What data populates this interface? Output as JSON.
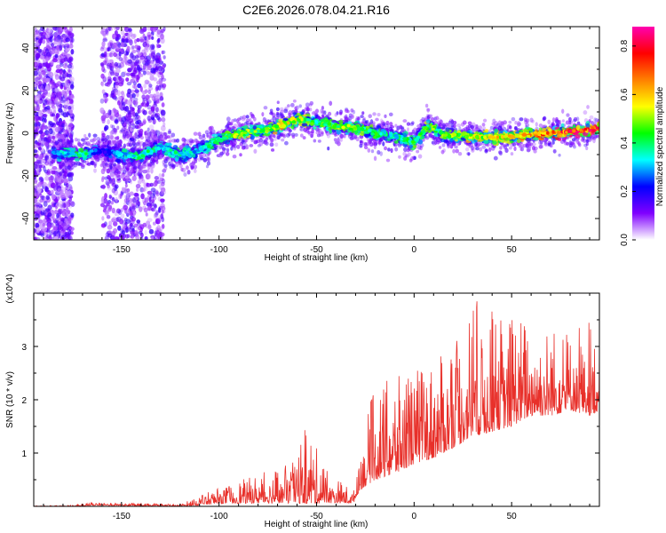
{
  "title": "C2E6.2026.078.04.21.R16",
  "colors": {
    "snr_line": "#e8302a",
    "axis": "#000000",
    "colormap": [
      "#ffffff",
      "#8000ff",
      "#0000ff",
      "#00ffff",
      "#00ff00",
      "#ffff00",
      "#ff8000",
      "#ff0000",
      "#ff00b0"
    ]
  },
  "chart_data": [
    {
      "type": "heatmap",
      "title": "C2E6.2026.078.04.21.R16",
      "xlabel": "Height of straight line (km)",
      "ylabel": "Frequency (Hz)",
      "xlim": [
        -195,
        95
      ],
      "ylim": [
        -50,
        50
      ],
      "xticks": [
        -150,
        -100,
        -50,
        0,
        50
      ],
      "xtick_labels": [
        "-150",
        "-100",
        "-50",
        "0",
        "50"
      ],
      "yticks": [
        -40,
        -20,
        0,
        20,
        40
      ],
      "ytick_labels": [
        "-40",
        "-20",
        "0",
        "20",
        "40"
      ],
      "colorbar": {
        "label": "Normalized spectral amplitude",
        "range": [
          0.0,
          0.88
        ],
        "ticks": [
          0.0,
          0.2,
          0.4,
          0.6,
          0.8
        ],
        "tick_labels": [
          "0.0",
          "0.2",
          "0.4",
          "0.6",
          "0.8"
        ]
      },
      "ridge": {
        "x": [
          -185,
          -170,
          -160,
          -150,
          -140,
          -130,
          -120,
          -110,
          -100,
          -90,
          -80,
          -70,
          -60,
          -50,
          -40,
          -30,
          -20,
          -10,
          0,
          8,
          15,
          25,
          40,
          55,
          70,
          85,
          95
        ],
        "frequency": [
          -9,
          -10,
          -8,
          -10,
          -11,
          -6,
          -10,
          -8,
          -3,
          0,
          1,
          3,
          7,
          5,
          3,
          3,
          0,
          -1,
          -4,
          4,
          -1,
          -1,
          -2,
          -1,
          0,
          1,
          2
        ],
        "amplitude": [
          0.3,
          0.45,
          0.2,
          0.35,
          0.45,
          0.35,
          0.4,
          0.35,
          0.45,
          0.55,
          0.5,
          0.6,
          0.6,
          0.45,
          0.55,
          0.5,
          0.45,
          0.4,
          0.45,
          0.5,
          0.5,
          0.55,
          0.6,
          0.65,
          0.75,
          0.85,
          0.8
        ]
      },
      "scatter_regions": [
        {
          "x_range": [
            -195,
            -175
          ],
          "frequency_range": [
            -50,
            50
          ],
          "amplitude": 0.15
        },
        {
          "x_range": [
            -160,
            -128
          ],
          "frequency_range": [
            -50,
            50
          ],
          "amplitude": 0.15
        }
      ]
    },
    {
      "type": "line",
      "title": "",
      "xlabel": "Height of straight line (km)",
      "ylabel": "SNR (10 * v/v)",
      "y_multiplier": "(x10^4)",
      "xlim": [
        -195,
        95
      ],
      "ylim": [
        0,
        4
      ],
      "xticks": [
        -150,
        -100,
        -50,
        0,
        50
      ],
      "xtick_labels": [
        "-150",
        "-100",
        "-50",
        "0",
        "50"
      ],
      "yticks": [
        1,
        2,
        3
      ],
      "ytick_labels": [
        "1",
        "2",
        "3"
      ],
      "series": [
        {
          "name": "SNR",
          "envelope": {
            "x": [
              -195,
              -175,
              -165,
              -120,
              -110,
              -100,
              -80,
              -65,
              -55,
              -45,
              -35,
              -31,
              -28,
              -20,
              -10,
              0,
              10,
              20,
              30,
              40,
              50,
              60,
              70,
              80,
              90,
              95
            ],
            "baseline": [
              0.0,
              0.0,
              0.02,
              0.0,
              0.02,
              0.05,
              0.06,
              0.06,
              0.05,
              0.06,
              0.06,
              0.06,
              0.3,
              0.5,
              0.6,
              0.8,
              0.9,
              1.1,
              1.3,
              1.4,
              1.5,
              1.7,
              1.7,
              1.8,
              1.7,
              1.8
            ],
            "peak": [
              0.01,
              0.02,
              0.07,
              0.04,
              0.2,
              0.35,
              0.6,
              0.8,
              1.5,
              0.7,
              0.4,
              0.3,
              1.1,
              2.3,
              2.4,
              2.6,
              2.7,
              3.0,
              3.9,
              3.7,
              3.6,
              3.5,
              3.4,
              3.2,
              3.6,
              3.1
            ]
          }
        }
      ]
    }
  ]
}
